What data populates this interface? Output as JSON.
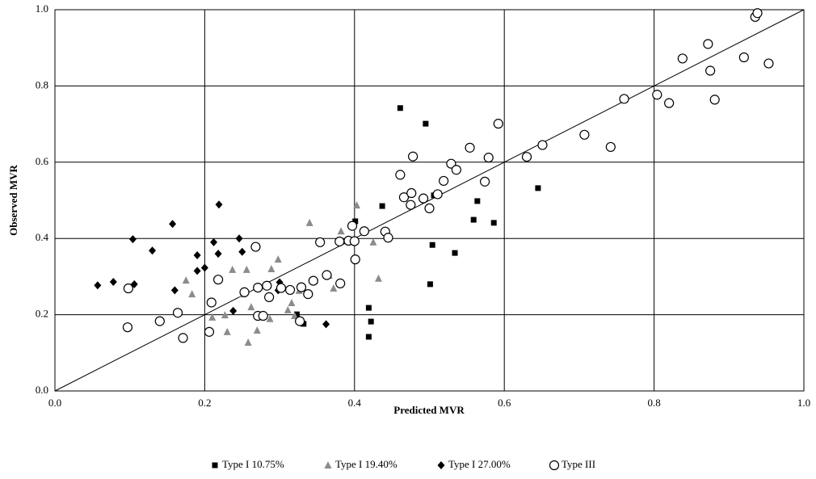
{
  "chart_data": {
    "type": "scatter",
    "x_label": "Predicted MVR",
    "y_label": "Observed MVR",
    "xlim": [
      0,
      1
    ],
    "ylim": [
      0,
      1
    ],
    "xticks": [
      {
        "value": 0,
        "label": "0.0"
      },
      0.2,
      0.4,
      0.6,
      0.8,
      {
        "value": 1,
        "label": "1.0"
      }
    ],
    "yticks": [
      {
        "value": 0,
        "label": "0.0"
      },
      0.2,
      0.4,
      0.6,
      0.8,
      {
        "value": 1,
        "label": "1.0"
      }
    ],
    "grid": true,
    "diagonal": true,
    "legend": "bottom",
    "series": [
      {
        "name": "Type I 10.75%",
        "color": "#000000",
        "marker": "square",
        "x": [
          0.461,
          0.495,
          0.437,
          0.401,
          0.506,
          0.564,
          0.645,
          0.559,
          0.586,
          0.504,
          0.534,
          0.501,
          0.419,
          0.422,
          0.419,
          0.323,
          0.332
        ],
        "values": [
          0.742,
          0.701,
          0.485,
          0.445,
          0.513,
          0.498,
          0.532,
          0.449,
          0.441,
          0.383,
          0.362,
          0.28,
          0.218,
          0.182,
          0.142,
          0.201,
          0.176
        ]
      },
      {
        "name": "Type I 19.40%",
        "color": "#8c8c8c",
        "marker": "triangle",
        "x": [
          0.403,
          0.34,
          0.382,
          0.425,
          0.298,
          0.256,
          0.289,
          0.175,
          0.183,
          0.237,
          0.251,
          0.21,
          0.227,
          0.23,
          0.262,
          0.27,
          0.258,
          0.287,
          0.311,
          0.316,
          0.32,
          0.326,
          0.346,
          0.366,
          0.372,
          0.381,
          0.432
        ],
        "values": [
          0.487,
          0.441,
          0.419,
          0.39,
          0.345,
          0.318,
          0.32,
          0.29,
          0.254,
          0.318,
          0.254,
          0.193,
          0.199,
          0.155,
          0.22,
          0.159,
          0.127,
          0.189,
          0.212,
          0.231,
          0.197,
          0.263,
          0.288,
          0.303,
          0.269,
          0.284,
          0.295
        ]
      },
      {
        "name": "Type I 27.00%",
        "color": "#000000",
        "marker": "diamond",
        "x": [
          0.057,
          0.078,
          0.106,
          0.104,
          0.13,
          0.157,
          0.16,
          0.19,
          0.19,
          0.2,
          0.212,
          0.219,
          0.218,
          0.246,
          0.25,
          0.238,
          0.27,
          0.3,
          0.298,
          0.14,
          0.362
        ],
        "values": [
          0.277,
          0.286,
          0.28,
          0.398,
          0.368,
          0.438,
          0.264,
          0.315,
          0.356,
          0.323,
          0.39,
          0.489,
          0.36,
          0.4,
          0.365,
          0.21,
          0.378,
          0.285,
          0.264,
          0.183,
          0.175
        ]
      },
      {
        "name": "Type III",
        "color": "#ffffff",
        "marker": "circle",
        "x": [
          0.097,
          0.098,
          0.14,
          0.164,
          0.171,
          0.206,
          0.209,
          0.218,
          0.253,
          0.268,
          0.271,
          0.271,
          0.278,
          0.283,
          0.286,
          0.302,
          0.314,
          0.327,
          0.329,
          0.338,
          0.345,
          0.363,
          0.381,
          0.38,
          0.397,
          0.392,
          0.4,
          0.401,
          0.413,
          0.441,
          0.445,
          0.461,
          0.466,
          0.475,
          0.476,
          0.478,
          0.492,
          0.5,
          0.511,
          0.519,
          0.529,
          0.536,
          0.554,
          0.574,
          0.579,
          0.592,
          0.63,
          0.651,
          0.707,
          0.742,
          0.76,
          0.804,
          0.82,
          0.838,
          0.872,
          0.875,
          0.881,
          0.92,
          0.935,
          0.938,
          0.953,
          0.354
        ],
        "values": [
          0.167,
          0.269,
          0.183,
          0.205,
          0.139,
          0.155,
          0.232,
          0.292,
          0.259,
          0.378,
          0.271,
          0.197,
          0.197,
          0.276,
          0.246,
          0.27,
          0.265,
          0.183,
          0.272,
          0.254,
          0.289,
          0.304,
          0.282,
          0.392,
          0.433,
          0.394,
          0.393,
          0.345,
          0.419,
          0.418,
          0.402,
          0.567,
          0.508,
          0.488,
          0.519,
          0.615,
          0.505,
          0.479,
          0.516,
          0.551,
          0.596,
          0.58,
          0.638,
          0.549,
          0.612,
          0.701,
          0.614,
          0.645,
          0.672,
          0.64,
          0.766,
          0.777,
          0.755,
          0.872,
          0.91,
          0.84,
          0.764,
          0.875,
          0.981,
          0.991,
          0.859,
          0.39
        ]
      }
    ]
  }
}
